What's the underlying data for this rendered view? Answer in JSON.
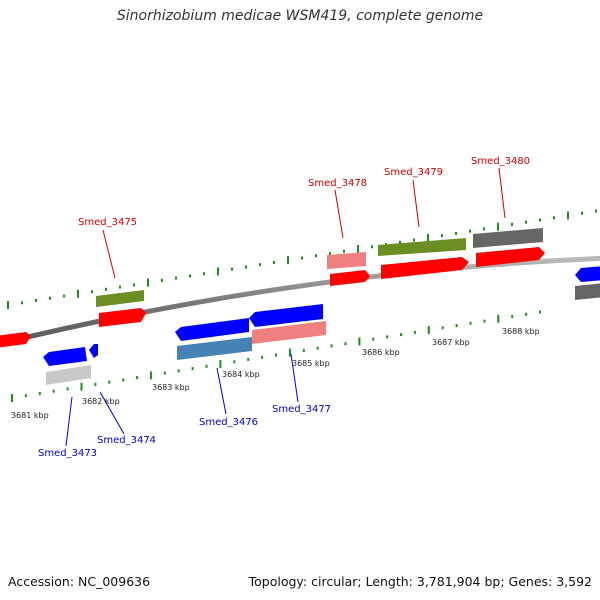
{
  "title": "Sinorhizobium medicae WSM419, complete genome",
  "footer": {
    "accession": "Accession: NC_009636",
    "topology": "Topology: circular; Length: 3,781,904 bp; Genes: 3,592"
  },
  "ticks": [
    "3681 kbp",
    "3682 kbp",
    "3683 kbp",
    "3684 kbp",
    "3685 kbp",
    "3686 kbp",
    "3687 kbp",
    "3688 kbp"
  ],
  "forward_labels": [
    "Smed_3475",
    "Smed_3478",
    "Smed_3479",
    "Smed_3480"
  ],
  "reverse_labels": [
    "Smed_3473",
    "Smed_3474",
    "Smed_3476",
    "Smed_3477"
  ],
  "colors": {
    "forward_label": "#cc0000",
    "reverse_label": "#0000cc",
    "cds_red": "#ff0000",
    "cds_blue": "#0000ff",
    "olive": "#6b8e23",
    "gray": "#666666",
    "pink": "#f08080",
    "steel": "#4682b4",
    "lightgray": "#c8c8c8",
    "tick_green": "#1a8f1a"
  }
}
